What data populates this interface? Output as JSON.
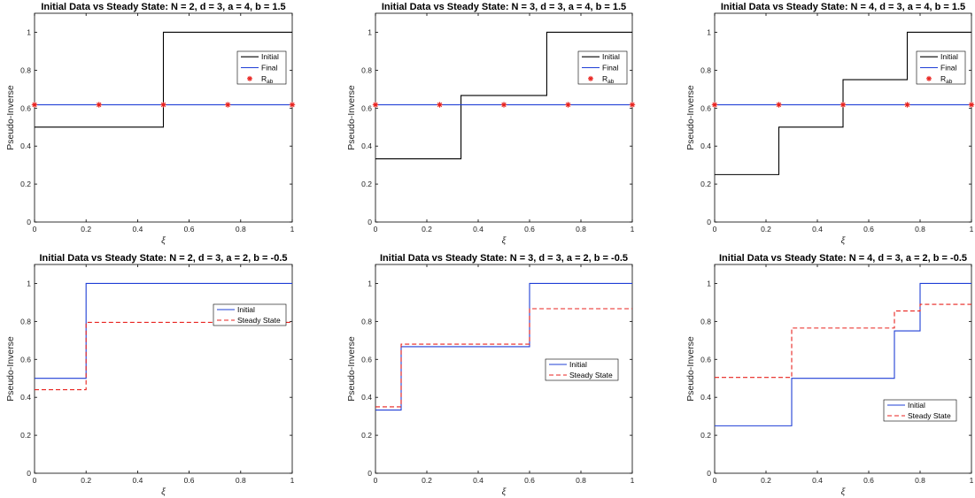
{
  "chart_data": [
    {
      "type": "line",
      "title": "Initial Data vs Steady State: N = 2,  d = 3,  a = 4,  b = 1.5",
      "xlabel": "ξ",
      "ylabel": "Pseudo-Inverse",
      "xlim": [
        0,
        1
      ],
      "ylim": [
        0,
        1.1
      ],
      "xticks": [
        "0",
        "0.2",
        "0.4",
        "0.6",
        "0.8",
        "1"
      ],
      "yticks": [
        "0",
        "0.2",
        "0.4",
        "0.6",
        "0.8",
        "1"
      ],
      "legend_position": "upper-right",
      "series": [
        {
          "name": "Initial",
          "style": "solid",
          "color": "#000000",
          "step": true,
          "x": [
            0,
            0.5,
            0.5,
            1
          ],
          "y": [
            0.5,
            0.5,
            1,
            1
          ]
        },
        {
          "name": "Final",
          "style": "solid",
          "color": "#1f3fd6",
          "x": [
            0,
            1
          ],
          "y": [
            0.618,
            0.618
          ]
        },
        {
          "name": "R",
          "subscript": "ab",
          "style": "markers",
          "color": "#e8231f",
          "x": [
            0,
            0.25,
            0.5,
            0.75,
            1
          ],
          "y": [
            0.618,
            0.618,
            0.618,
            0.618,
            0.618
          ]
        }
      ]
    },
    {
      "type": "line",
      "title": "Initial Data vs Steady State: N = 3,  d = 3,  a = 4,  b = 1.5",
      "xlabel": "ξ",
      "ylabel": "Pseudo-Inverse",
      "xlim": [
        0,
        1
      ],
      "ylim": [
        0,
        1.1
      ],
      "xticks": [
        "0",
        "0.2",
        "0.4",
        "0.6",
        "0.8",
        "1"
      ],
      "yticks": [
        "0",
        "0.2",
        "0.4",
        "0.6",
        "0.8",
        "1"
      ],
      "legend_position": "upper-right",
      "series": [
        {
          "name": "Initial",
          "style": "solid",
          "color": "#000000",
          "step": true,
          "x": [
            0,
            0.333,
            0.333,
            0.667,
            0.667,
            1
          ],
          "y": [
            0.333,
            0.333,
            0.667,
            0.667,
            1,
            1
          ]
        },
        {
          "name": "Final",
          "style": "solid",
          "color": "#1f3fd6",
          "x": [
            0,
            1
          ],
          "y": [
            0.618,
            0.618
          ]
        },
        {
          "name": "R",
          "subscript": "ab",
          "style": "markers",
          "color": "#e8231f",
          "x": [
            0,
            0.25,
            0.5,
            0.75,
            1
          ],
          "y": [
            0.618,
            0.618,
            0.618,
            0.618,
            0.618
          ]
        }
      ]
    },
    {
      "type": "line",
      "title": "Initial Data vs Steady State: N = 4,  d = 3,  a = 4,  b = 1.5",
      "xlabel": "ξ",
      "ylabel": "Pseudo-Inverse",
      "xlim": [
        0,
        1
      ],
      "ylim": [
        0,
        1.1
      ],
      "xticks": [
        "0",
        "0.2",
        "0.4",
        "0.6",
        "0.8",
        "1"
      ],
      "yticks": [
        "0",
        "0.2",
        "0.4",
        "0.6",
        "0.8",
        "1"
      ],
      "legend_position": "upper-right",
      "series": [
        {
          "name": "Initial",
          "style": "solid",
          "color": "#000000",
          "step": true,
          "x": [
            0,
            0.25,
            0.25,
            0.5,
            0.5,
            0.75,
            0.75,
            1
          ],
          "y": [
            0.25,
            0.25,
            0.5,
            0.5,
            0.75,
            0.75,
            1,
            1
          ]
        },
        {
          "name": "Final",
          "style": "solid",
          "color": "#1f3fd6",
          "x": [
            0,
            1
          ],
          "y": [
            0.618,
            0.618
          ]
        },
        {
          "name": "R",
          "subscript": "ab",
          "style": "markers",
          "color": "#e8231f",
          "x": [
            0,
            0.25,
            0.5,
            0.75,
            1
          ],
          "y": [
            0.618,
            0.618,
            0.618,
            0.618,
            0.618
          ]
        }
      ]
    },
    {
      "type": "line",
      "title": "Initial Data vs Steady State: N = 2,  d = 3,  a = 2,  b = -0.5",
      "xlabel": "ξ",
      "ylabel": "Pseudo-Inverse",
      "xlim": [
        0,
        1
      ],
      "ylim": [
        0,
        1.1
      ],
      "xticks": [
        "0",
        "0.2",
        "0.4",
        "0.6",
        "0.8",
        "1"
      ],
      "yticks": [
        "0",
        "0.2",
        "0.4",
        "0.6",
        "0.8",
        "1"
      ],
      "legend_position": "upper-right",
      "series": [
        {
          "name": "Initial",
          "style": "solid",
          "color": "#1f3fd6",
          "step": true,
          "x": [
            0,
            0.2,
            0.2,
            1
          ],
          "y": [
            0.5,
            0.5,
            1,
            1
          ]
        },
        {
          "name": "Steady State",
          "style": "dashed",
          "color": "#e8231f",
          "step": true,
          "x": [
            0,
            0.2,
            0.2,
            1
          ],
          "y": [
            0.44,
            0.44,
            0.795,
            0.795
          ]
        }
      ]
    },
    {
      "type": "line",
      "title": "Initial Data vs Steady State: N = 3,  d = 3,  a = 2,  b = -0.5",
      "xlabel": "ξ",
      "ylabel": "Pseudo-Inverse",
      "xlim": [
        0,
        1
      ],
      "ylim": [
        0,
        1.1
      ],
      "xticks": [
        "0",
        "0.2",
        "0.4",
        "0.6",
        "0.8",
        "1"
      ],
      "yticks": [
        "0",
        "0.2",
        "0.4",
        "0.6",
        "0.8",
        "1"
      ],
      "legend_position": "middle-right",
      "series": [
        {
          "name": "Initial",
          "style": "solid",
          "color": "#1f3fd6",
          "step": true,
          "x": [
            0,
            0.1,
            0.1,
            0.6,
            0.6,
            1
          ],
          "y": [
            0.333,
            0.333,
            0.667,
            0.667,
            1,
            1
          ]
        },
        {
          "name": "Steady State",
          "style": "dashed",
          "color": "#e8231f",
          "step": true,
          "x": [
            0,
            0.1,
            0.1,
            0.6,
            0.6,
            1
          ],
          "y": [
            0.35,
            0.35,
            0.68,
            0.68,
            0.867,
            0.867
          ]
        }
      ]
    },
    {
      "type": "line",
      "title": "Initial Data vs Steady State: N = 4,  d = 3,  a = 2,  b = -0.5",
      "xlabel": "ξ",
      "ylabel": "Pseudo-Inverse",
      "xlim": [
        0,
        1
      ],
      "ylim": [
        0,
        1.1
      ],
      "xticks": [
        "0",
        "0.2",
        "0.4",
        "0.6",
        "0.8",
        "1"
      ],
      "yticks": [
        "0",
        "0.2",
        "0.4",
        "0.6",
        "0.8",
        "1"
      ],
      "legend_position": "lower-right",
      "series": [
        {
          "name": "Initial",
          "style": "solid",
          "color": "#1f3fd6",
          "step": true,
          "x": [
            0,
            0.3,
            0.3,
            0.7,
            0.7,
            0.8,
            0.8,
            1
          ],
          "y": [
            0.25,
            0.25,
            0.5,
            0.5,
            0.75,
            0.75,
            1,
            1
          ]
        },
        {
          "name": "Steady State",
          "style": "dashed",
          "color": "#e8231f",
          "step": true,
          "x": [
            0,
            0.3,
            0.3,
            0.7,
            0.7,
            0.8,
            0.8,
            1
          ],
          "y": [
            0.505,
            0.505,
            0.765,
            0.765,
            0.855,
            0.855,
            0.89,
            0.89
          ]
        }
      ]
    }
  ]
}
